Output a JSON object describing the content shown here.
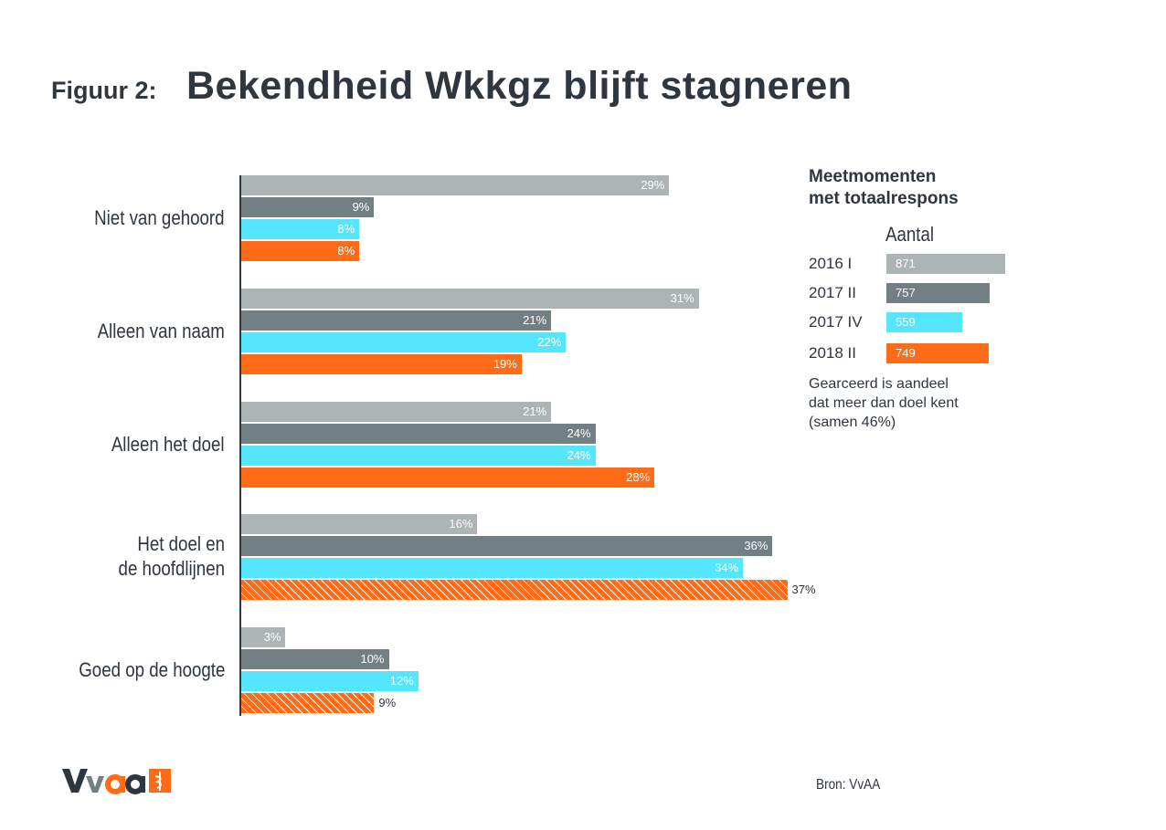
{
  "header": {
    "figure_label": "Figuur 2:",
    "title": "Bekendheid Wkkgz blijft stagneren"
  },
  "chart_data": {
    "type": "bar",
    "orientation": "horizontal",
    "title": "Bekendheid Wkkgz blijft stagneren",
    "categories": [
      "Niet van gehoord",
      "Alleen van naam",
      "Alleen het doel",
      "Het doel en de hoofdlijnen",
      "Goed op de hoogte"
    ],
    "category_lines": [
      [
        "Niet van gehoord"
      ],
      [
        "Alleen van naam"
      ],
      [
        "Alleen het doel"
      ],
      [
        "Het doel en",
        "de hoofdlijnen"
      ],
      [
        "Goed op de hoogte"
      ]
    ],
    "unit": "%",
    "xlim": [
      0,
      37
    ],
    "grid": false,
    "legend_position": "right",
    "series": [
      {
        "name": "2016 I",
        "color": "#adb4b6",
        "values": [
          29,
          31,
          21,
          16,
          3
        ],
        "hatched": [
          false,
          false,
          false,
          false,
          false
        ]
      },
      {
        "name": "2017 II",
        "color": "#728085",
        "values": [
          9,
          21,
          24,
          36,
          10
        ],
        "hatched": [
          false,
          false,
          false,
          false,
          false
        ]
      },
      {
        "name": "2017 IV",
        "color": "#55e6fe",
        "values": [
          8,
          22,
          24,
          34,
          12
        ],
        "hatched": [
          false,
          false,
          false,
          false,
          false
        ]
      },
      {
        "name": "2018 II",
        "color": "#ff6b17",
        "values": [
          8,
          19,
          28,
          37,
          9
        ],
        "hatched": [
          false,
          false,
          false,
          true,
          true
        ]
      }
    ]
  },
  "legend": {
    "title_lines": [
      "Meetmomenten",
      "met totaalrespons"
    ],
    "subtitle": "Aantal",
    "items": [
      {
        "label": "2016 I",
        "count": 871,
        "color": "#adb4b6"
      },
      {
        "label": "2017 II",
        "count": 757,
        "color": "#728085"
      },
      {
        "label": "2017 IV",
        "count": 559,
        "color": "#55e6fe"
      },
      {
        "label": "2018 II",
        "count": 749,
        "color": "#ff6b17"
      }
    ],
    "note_lines": [
      "Gearceerd is aandeel",
      "dat meer dan doel kent",
      "(samen 46%)"
    ]
  },
  "footer": {
    "source": "Bron: VvAA",
    "logo_text": "VvAA"
  }
}
